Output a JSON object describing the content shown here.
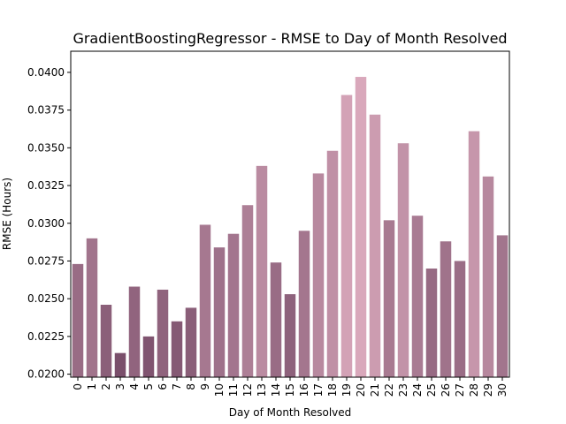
{
  "chart_data": {
    "type": "bar",
    "title": "GradientBoostingRegressor - RMSE to Day of Month Resolved",
    "xlabel": "Day of Month Resolved",
    "ylabel": "RMSE (Hours)",
    "ylim": [
      0.0198,
      0.0414
    ],
    "yticks": [
      "0.0200",
      "0.0225",
      "0.0250",
      "0.0275",
      "0.0300",
      "0.0325",
      "0.0350",
      "0.0375",
      "0.0400"
    ],
    "grid": false,
    "categories": [
      "0",
      "1",
      "2",
      "3",
      "4",
      "5",
      "6",
      "7",
      "8",
      "9",
      "10",
      "11",
      "12",
      "13",
      "14",
      "15",
      "16",
      "17",
      "18",
      "19",
      "20",
      "21",
      "22",
      "23",
      "24",
      "25",
      "26",
      "27",
      "28",
      "29",
      "30"
    ],
    "values": [
      0.0273,
      0.029,
      0.0246,
      0.0214,
      0.0258,
      0.0225,
      0.0256,
      0.0235,
      0.0244,
      0.0299,
      0.0284,
      0.0293,
      0.0312,
      0.0338,
      0.0274,
      0.0253,
      0.0295,
      0.0333,
      0.0348,
      0.0385,
      0.0397,
      0.0372,
      0.0302,
      0.0353,
      0.0305,
      0.027,
      0.0288,
      0.0275,
      0.0361,
      0.0331,
      0.0292
    ],
    "color_low": "#7a4f6b",
    "color_high": "#d9a8bb"
  }
}
